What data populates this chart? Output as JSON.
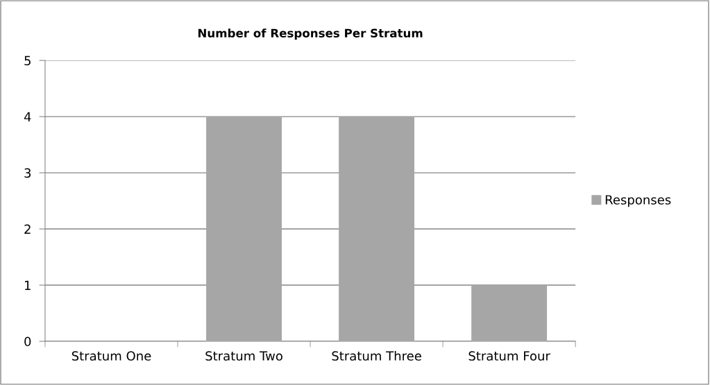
{
  "chart_data": {
    "type": "bar",
    "title": "Number of Responses Per Stratum",
    "categories": [
      "Stratum One",
      "Stratum Two",
      "Stratum Three",
      "Stratum Four"
    ],
    "series": [
      {
        "name": "Responses",
        "color": "#a6a6a6",
        "values": [
          0,
          4,
          4,
          1
        ]
      }
    ],
    "ylim": [
      0,
      5
    ],
    "yticks": [
      0,
      1,
      2,
      3,
      4,
      5
    ],
    "grid": "y",
    "legend": "right"
  }
}
